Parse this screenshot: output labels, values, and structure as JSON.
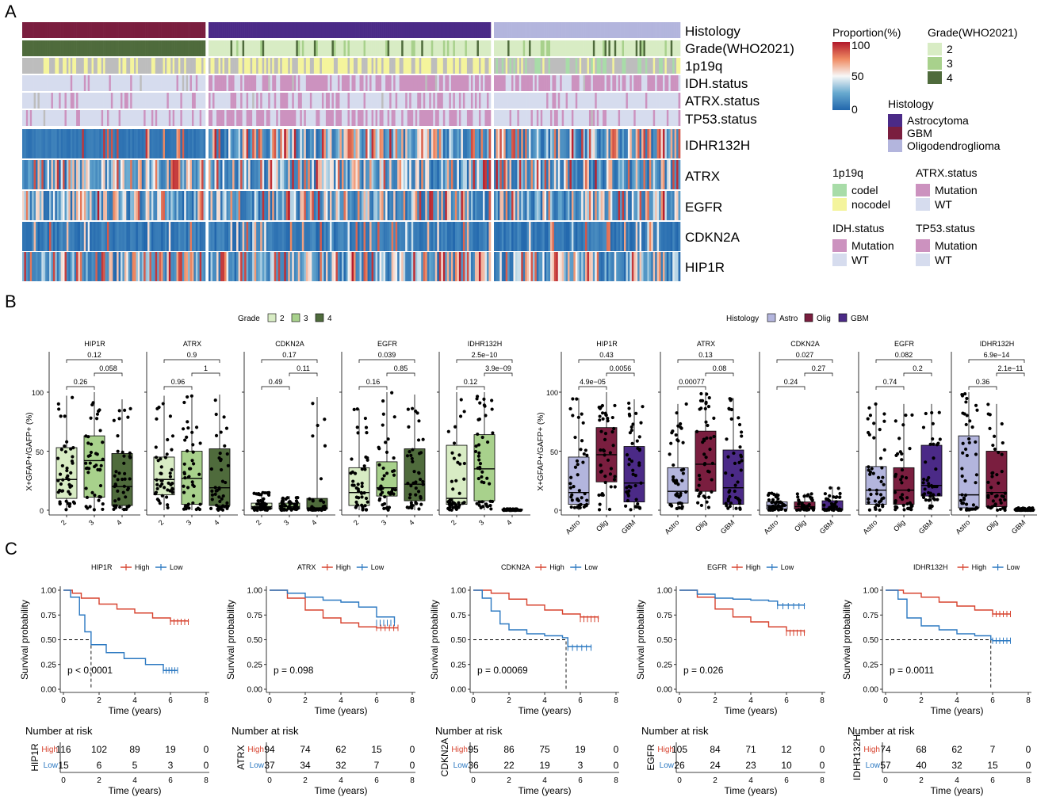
{
  "panels": {
    "A": "A",
    "B": "B",
    "C": "C"
  },
  "colors": {
    "astro": "#4b2a87",
    "gbm": "#7a1e3f",
    "oligo": "#b3b5dd",
    "grade2": "#d8ecc4",
    "grade3": "#a8d18c",
    "grade4": "#4f6b3c",
    "codel": "#a8dca8",
    "nocodel": "#f4f49c",
    "na": "#bdbdbd",
    "mutation": "#cc92bf",
    "wt": "#d6dcee",
    "high": "#d7432f",
    "low": "#2b78c1"
  },
  "heatmap": {
    "annotation_rows": [
      "Histology",
      "Grade(WHO2021)",
      "1p19q",
      "IDH.status",
      "ATRX.status",
      "TP53.status"
    ],
    "expression_rows": [
      "IDHR132H",
      "ATRX",
      "EGFR",
      "CDKN2A",
      "HIP1R"
    ],
    "group_sizes": [
      95,
      142,
      96
    ],
    "group_order": [
      "GBM",
      "Astrocytoma",
      "Oligodendroglioma"
    ]
  },
  "legends": {
    "proportion": {
      "title": "Proportion(%)",
      "ticks": [
        "100",
        "50",
        "0"
      ]
    },
    "grade": {
      "title": "Grade(WHO2021)",
      "items": [
        "2",
        "3",
        "4"
      ]
    },
    "histology": {
      "title": "Histology",
      "items": [
        "Astrocytoma",
        "GBM",
        "Oligodendroglioma"
      ]
    },
    "p19q": {
      "title": "1p19q",
      "items": [
        "codel",
        "nocodel"
      ]
    },
    "atrx": {
      "title": "ATRX.status",
      "items": [
        "Mutation",
        "WT"
      ]
    },
    "idh": {
      "title": "IDH.status",
      "items": [
        "Mutation",
        "WT"
      ]
    },
    "tp53": {
      "title": "TP53.status",
      "items": [
        "Mutation",
        "WT"
      ]
    }
  },
  "boxplots": {
    "ylabel": "X+GFAP+/GAFP+ (%)",
    "yticks": [
      "0",
      "50",
      "100"
    ],
    "grade_legend": {
      "title": "Grade",
      "items": [
        "2",
        "3",
        "4"
      ]
    },
    "histology_legend": {
      "title": "Histology",
      "items": [
        "Astro",
        "Olig",
        "GBM"
      ]
    }
  },
  "survival": {
    "legend_high": "High",
    "legend_low": "Low",
    "ylabel": "Survival probability",
    "xlabel": "Time (years)",
    "risk_title": "Number at risk",
    "yticks": [
      "0.00",
      "0.25",
      "0.50",
      "0.75",
      "1.00"
    ],
    "xticks": [
      "0",
      "2",
      "4",
      "6",
      "8"
    ]
  },
  "chart_data": [
    {
      "type": "heatmap",
      "panel": "A",
      "rows": [
        "Histology",
        "Grade(WHO2021)",
        "1p19q",
        "IDH.status",
        "ATRX.status",
        "TP53.status",
        "IDHR132H",
        "ATRX",
        "EGFR",
        "CDKN2A",
        "HIP1R"
      ],
      "groups": [
        "GBM",
        "Astrocytoma",
        "Oligodendroglioma"
      ],
      "value_range": [
        0,
        100
      ]
    },
    {
      "type": "box",
      "panel": "B",
      "grouping": "Grade",
      "facets": [
        "HIP1R",
        "ATRX",
        "CDKN2A",
        "EGFR",
        "IDHR132H"
      ],
      "categories": [
        "2",
        "3",
        "4"
      ],
      "ylim": [
        0,
        100
      ],
      "boxes": [
        [
          [
            0,
            10,
            26,
            53,
            97
          ],
          [
            0,
            11,
            42,
            63,
            100
          ],
          [
            0,
            4,
            20,
            48,
            94
          ]
        ],
        [
          [
            0,
            13,
            26,
            45,
            97
          ],
          [
            0,
            5,
            27,
            50,
            98
          ],
          [
            0,
            4,
            19,
            52,
            98
          ]
        ],
        [
          [
            0,
            1,
            3,
            6,
            15
          ],
          [
            0,
            1,
            3,
            6,
            12
          ],
          [
            0,
            1,
            2,
            10,
            96
          ]
        ],
        [
          [
            0,
            4,
            15,
            36,
            86
          ],
          [
            0,
            12,
            19,
            41,
            100
          ],
          [
            0,
            8,
            22,
            52,
            98
          ]
        ],
        [
          [
            0,
            5,
            10,
            55,
            100
          ],
          [
            0,
            8,
            35,
            64,
            100
          ],
          [
            0,
            0,
            0,
            1,
            1
          ]
        ]
      ],
      "brackets": [
        [
          "0.26",
          "0.058",
          "0.12"
        ],
        [
          "0.96",
          "1",
          "0.9"
        ],
        [
          "0.49",
          "0.11",
          "0.17"
        ],
        [
          "0.16",
          "0.85",
          "0.039"
        ],
        [
          "0.12",
          "3.9e−09",
          "2.5e−10"
        ]
      ]
    },
    {
      "type": "box",
      "panel": "B",
      "grouping": "Histology",
      "facets": [
        "HIP1R",
        "ATRX",
        "CDKN2A",
        "EGFR",
        "IDHR132H"
      ],
      "categories": [
        "Astro",
        "Olig",
        "GBM"
      ],
      "ylim": [
        0,
        100
      ],
      "boxes": [
        [
          [
            0,
            5,
            15,
            45,
            95
          ],
          [
            0,
            24,
            47,
            70,
            100
          ],
          [
            0,
            7,
            23,
            54,
            94
          ]
        ],
        [
          [
            0,
            6,
            16,
            36,
            90
          ],
          [
            0,
            16,
            39,
            67,
            100
          ],
          [
            0,
            5,
            19,
            51,
            95
          ]
        ],
        [
          [
            0,
            1,
            4,
            7,
            15
          ],
          [
            0,
            1,
            3,
            7,
            14
          ],
          [
            0,
            0,
            1,
            8,
            20
          ]
        ],
        [
          [
            0,
            5,
            17,
            37,
            90
          ],
          [
            0,
            5,
            17,
            36,
            90
          ],
          [
            0,
            12,
            21,
            55,
            90
          ]
        ],
        [
          [
            0,
            2,
            13,
            63,
            100
          ],
          [
            0,
            3,
            15,
            50,
            90
          ],
          [
            0,
            0,
            0,
            1,
            2
          ]
        ]
      ],
      "brackets": [
        [
          "4.9e−05",
          "0.0056",
          "0.43"
        ],
        [
          "0.00077",
          "0.08",
          "0.13"
        ],
        [
          "0.24",
          "0.27",
          "0.027"
        ],
        [
          "0.74",
          "0.2",
          "0.082"
        ],
        [
          "0.36",
          "2.1e−11",
          "6.9e−14"
        ]
      ]
    },
    {
      "type": "line",
      "panel": "C",
      "subtype": "kaplan-meier",
      "xlim": [
        0,
        8
      ],
      "ylim": [
        0,
        1
      ],
      "plots": [
        {
          "gene": "HIP1R",
          "p": "p < 0.0001",
          "median_low": 1.55,
          "high_curve": [
            [
              0,
              1
            ],
            [
              0.5,
              0.97
            ],
            [
              1,
              0.92
            ],
            [
              2,
              0.86
            ],
            [
              3,
              0.81
            ],
            [
              4,
              0.77
            ],
            [
              5,
              0.72
            ],
            [
              6,
              0.69
            ],
            [
              7,
              0.68
            ]
          ],
          "low_curve": [
            [
              0,
              1
            ],
            [
              0.4,
              0.93
            ],
            [
              0.9,
              0.75
            ],
            [
              1.2,
              0.58
            ],
            [
              1.55,
              0.45
            ],
            [
              2.4,
              0.37
            ],
            [
              3.4,
              0.31
            ],
            [
              4.6,
              0.25
            ],
            [
              5.6,
              0.19
            ],
            [
              6.4,
              0.19
            ]
          ],
          "risk": {
            "High": [
              "116",
              "102",
              "89",
              "19",
              "0"
            ],
            "Low": [
              "15",
              "6",
              "5",
              "3",
              "0"
            ]
          }
        },
        {
          "gene": "ATRX",
          "p": "p = 0.098",
          "median_low": null,
          "high_curve": [
            [
              0,
              1
            ],
            [
              1,
              0.92
            ],
            [
              2,
              0.8
            ],
            [
              3,
              0.72
            ],
            [
              4,
              0.67
            ],
            [
              5,
              0.63
            ],
            [
              6,
              0.62
            ],
            [
              7.2,
              0.62
            ]
          ],
          "low_curve": [
            [
              0,
              1
            ],
            [
              1,
              0.97
            ],
            [
              2,
              0.93
            ],
            [
              3,
              0.9
            ],
            [
              4,
              0.88
            ],
            [
              5,
              0.83
            ],
            [
              6,
              0.73
            ],
            [
              7,
              0.67
            ]
          ],
          "risk": {
            "High": [
              "94",
              "74",
              "62",
              "15",
              "0"
            ],
            "Low": [
              "37",
              "34",
              "32",
              "7",
              "0"
            ]
          }
        },
        {
          "gene": "CDKN2A",
          "p": "p = 0.00069",
          "median_low": 5.2,
          "high_curve": [
            [
              0,
              1
            ],
            [
              1,
              0.97
            ],
            [
              2,
              0.91
            ],
            [
              3,
              0.85
            ],
            [
              4,
              0.8
            ],
            [
              5,
              0.76
            ],
            [
              6,
              0.73
            ],
            [
              7,
              0.71
            ]
          ],
          "low_curve": [
            [
              0,
              1
            ],
            [
              0.5,
              0.92
            ],
            [
              1,
              0.79
            ],
            [
              1.5,
              0.66
            ],
            [
              2,
              0.6
            ],
            [
              3,
              0.56
            ],
            [
              4,
              0.54
            ],
            [
              5,
              0.52
            ],
            [
              5.3,
              0.43
            ],
            [
              6.6,
              0.42
            ]
          ],
          "risk": {
            "High": [
              "95",
              "86",
              "75",
              "19",
              "0"
            ],
            "Low": [
              "36",
              "22",
              "19",
              "3",
              "0"
            ]
          }
        },
        {
          "gene": "EGFR",
          "p": "p = 0.026",
          "median_low": null,
          "high_curve": [
            [
              0,
              1
            ],
            [
              1,
              0.93
            ],
            [
              2,
              0.81
            ],
            [
              3,
              0.73
            ],
            [
              4,
              0.68
            ],
            [
              5,
              0.63
            ],
            [
              6,
              0.59
            ],
            [
              7,
              0.57
            ]
          ],
          "low_curve": [
            [
              0,
              1
            ],
            [
              1,
              0.96
            ],
            [
              2,
              0.92
            ],
            [
              3,
              0.91
            ],
            [
              4,
              0.9
            ],
            [
              5,
              0.89
            ],
            [
              5.5,
              0.85
            ],
            [
              7,
              0.84
            ]
          ],
          "risk": {
            "High": [
              "105",
              "84",
              "71",
              "12",
              "0"
            ],
            "Low": [
              "26",
              "24",
              "23",
              "10",
              "0"
            ]
          }
        },
        {
          "gene": "IDHR132H",
          "p": "p = 0.0011",
          "median_low": 5.9,
          "high_curve": [
            [
              0,
              1
            ],
            [
              1,
              0.97
            ],
            [
              2,
              0.93
            ],
            [
              3,
              0.88
            ],
            [
              4,
              0.84
            ],
            [
              5,
              0.8
            ],
            [
              6,
              0.76
            ],
            [
              7,
              0.76
            ]
          ],
          "low_curve": [
            [
              0,
              1
            ],
            [
              0.7,
              0.91
            ],
            [
              1.2,
              0.72
            ],
            [
              2,
              0.64
            ],
            [
              3,
              0.6
            ],
            [
              4,
              0.56
            ],
            [
              5,
              0.54
            ],
            [
              5.9,
              0.5
            ],
            [
              6,
              0.49
            ],
            [
              7,
              0.49
            ]
          ],
          "risk": {
            "High": [
              "74",
              "68",
              "62",
              "7",
              "0"
            ],
            "Low": [
              "57",
              "40",
              "32",
              "15",
              "0"
            ]
          }
        }
      ]
    }
  ]
}
